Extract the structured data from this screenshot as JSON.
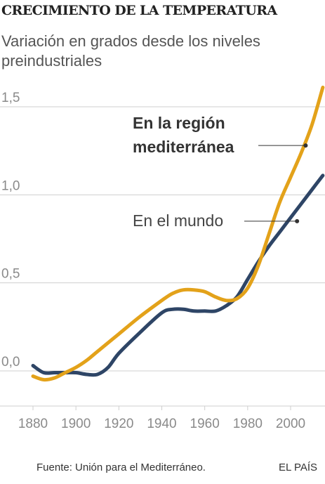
{
  "header": {
    "title": "CRECIMIENTO DE LA TEMPERATURA",
    "subtitle": "Variación en grados desde los niveles preindustriales"
  },
  "footer": {
    "source": "Fuente: Unión para el Mediterráneo.",
    "brand": "EL PAÍS"
  },
  "colors": {
    "mediterranean": "#E3A21A",
    "world": "#2E4566",
    "grid": "#CFCFCF",
    "tick_label": "#8A8A8A"
  },
  "chart_data": {
    "type": "line",
    "title": "CRECIMIENTO DE LA TEMPERATURA",
    "subtitle": "Variación en grados desde los niveles preindustriales",
    "xlim": [
      1880,
      2015
    ],
    "ylim": [
      -0.15,
      1.6
    ],
    "x_ticks": [
      1880,
      1900,
      1920,
      1940,
      1960,
      1980,
      2000
    ],
    "x_tick_labels": [
      "1880",
      "1900",
      "1920",
      "1940",
      "1960",
      "1980",
      "2000"
    ],
    "y_ticks": [
      0.0,
      0.5,
      1.0,
      1.5
    ],
    "y_tick_labels": [
      "0,0",
      "0,5",
      "1,0",
      "1,5"
    ],
    "grid": "horizontal",
    "series": [
      {
        "name": "En la región mediterránea",
        "color": "#E3A21A",
        "x": [
          1880,
          1885,
          1890,
          1895,
          1900,
          1905,
          1910,
          1920,
          1930,
          1940,
          1945,
          1950,
          1955,
          1960,
          1965,
          1970,
          1975,
          1980,
          1985,
          1990,
          1995,
          2000,
          2005,
          2010,
          2015
        ],
        "y": [
          -0.03,
          -0.05,
          -0.04,
          -0.01,
          0.02,
          0.06,
          0.11,
          0.21,
          0.31,
          0.4,
          0.44,
          0.46,
          0.46,
          0.45,
          0.42,
          0.4,
          0.41,
          0.47,
          0.6,
          0.78,
          0.96,
          1.1,
          1.24,
          1.4,
          1.61
        ]
      },
      {
        "name": "En el mundo",
        "color": "#2E4566",
        "x": [
          1880,
          1885,
          1890,
          1895,
          1900,
          1905,
          1910,
          1915,
          1920,
          1930,
          1940,
          1945,
          1950,
          1955,
          1960,
          1965,
          1970,
          1975,
          1980,
          1985,
          1990,
          1995,
          2000,
          2005,
          2010,
          2015
        ],
        "y": [
          0.03,
          -0.01,
          -0.01,
          -0.01,
          -0.01,
          -0.02,
          -0.02,
          0.02,
          0.1,
          0.22,
          0.33,
          0.35,
          0.35,
          0.34,
          0.34,
          0.34,
          0.37,
          0.42,
          0.52,
          0.62,
          0.71,
          0.79,
          0.87,
          0.95,
          1.03,
          1.11
        ]
      }
    ],
    "annotations": [
      {
        "text_lines": [
          "En la región",
          "mediterránea"
        ],
        "series": "En la región mediterránea",
        "x": 2007,
        "y": 1.28
      },
      {
        "text_lines": [
          "En el mundo"
        ],
        "series": "En el mundo",
        "x": 2003,
        "y": 0.85
      }
    ]
  }
}
